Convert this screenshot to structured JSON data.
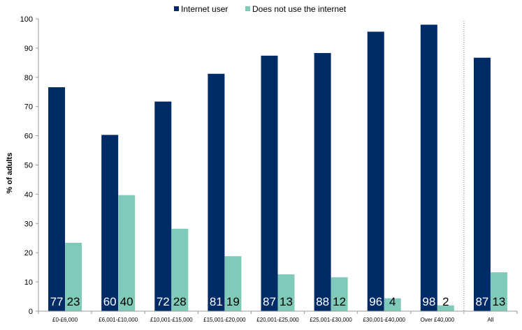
{
  "chart_data": {
    "type": "bar",
    "ylabel": "% of adults",
    "xlabel": "",
    "ylim": [
      0,
      100
    ],
    "yticks": [
      0,
      10,
      20,
      30,
      40,
      50,
      60,
      70,
      80,
      90,
      100
    ],
    "grid": false,
    "legend_position": "top-center",
    "categories": [
      "£0-£6,000",
      "£6,001-£10,000",
      "£10,001-£15,000",
      "£15,001-£20,000",
      "£20,001-£25,000",
      "£25,001-£30,000",
      "£30,001-£40,000",
      "Over £40,000",
      "All"
    ],
    "separator_before_category": "All",
    "series": [
      {
        "name": "Internet user",
        "color": "#002b66",
        "values": [
          76.6,
          60.3,
          71.7,
          81.2,
          87.4,
          88.3,
          95.6,
          98.0,
          86.7
        ],
        "labels": [
          "77",
          "60",
          "72",
          "81",
          "87",
          "88",
          "96",
          "98",
          "87"
        ],
        "label_color": "#ffffff"
      },
      {
        "name": "Does not use the internet",
        "color": "#7fcab9",
        "values": [
          23.4,
          39.7,
          28.2,
          18.8,
          12.6,
          11.6,
          4.4,
          2.0,
          13.3
        ],
        "labels": [
          "23",
          "40",
          "28",
          "19",
          "13",
          "12",
          "4",
          "2",
          "13"
        ],
        "label_color": "#000000"
      }
    ]
  }
}
